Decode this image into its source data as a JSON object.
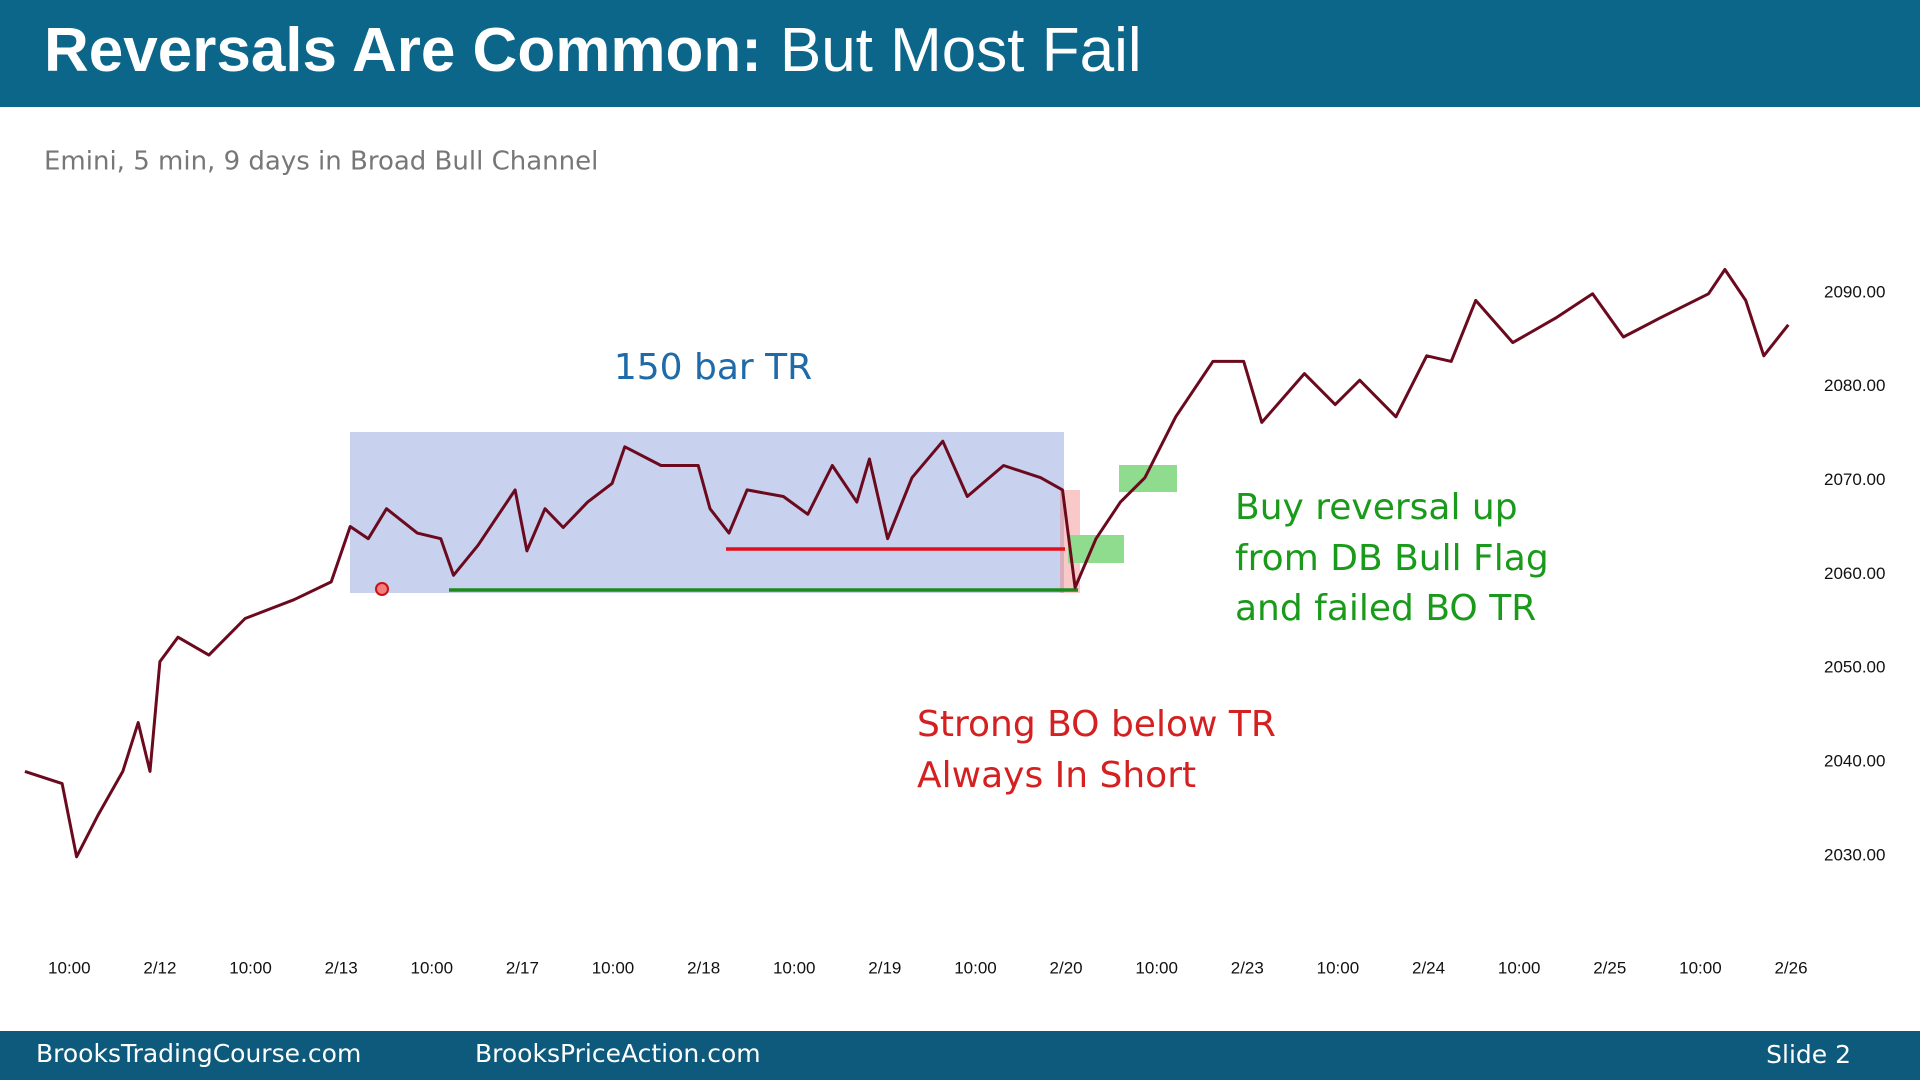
{
  "header": {
    "title": "Reversals Are Common:",
    "title_rest": "But Most Fail"
  },
  "chart_data": {
    "type": "line",
    "subtitle": "Emini, 5 min, 9 days in Broad Bull Channel",
    "annotations": [
      "150 bar TR",
      "Buy reversal up",
      "from DB Bull Flag",
      "and failed BO TR",
      "Strong BO below TR",
      "Always In Short"
    ],
    "color": "#6b0a1e",
    "grid": false,
    "x": [
      -0.49,
      -0.08,
      0.08,
      0.32,
      0.59,
      0.76,
      0.89,
      1.0,
      1.2,
      1.54,
      1.94,
      2.48,
      2.89,
      3.1,
      3.3,
      3.5,
      3.84,
      4.1,
      4.24,
      4.51,
      4.92,
      5.05,
      5.25,
      5.45,
      5.72,
      5.99,
      6.13,
      6.53,
      6.94,
      7.07,
      7.28,
      7.48,
      7.88,
      8.15,
      8.42,
      8.69,
      8.83,
      9.03,
      9.3,
      9.64,
      9.91,
      10.31,
      10.72,
      10.96,
      11.1,
      11.33,
      11.6,
      11.87,
      12.21,
      12.62,
      12.96,
      13.16,
      13.63,
      13.97,
      14.24,
      14.64,
      14.98,
      15.25,
      15.52,
      15.93,
      16.4,
      16.81,
      17.15,
      17.55,
      18.09,
      18.27,
      18.5,
      18.7,
      18.97
    ],
    "values": [
      2039,
      2037.7,
      2029.9,
      2034.4,
      2039,
      2044.2,
      2039,
      2050.7,
      2053.3,
      2051.4,
      2055.3,
      2057.3,
      2059.2,
      2065.1,
      2063.8,
      2067,
      2064.4,
      2063.8,
      2059.9,
      2063.1,
      2069,
      2062.5,
      2067,
      2065,
      2067.7,
      2069.7,
      2073.6,
      2071.6,
      2071.6,
      2067,
      2064.4,
      2069,
      2068.3,
      2066.4,
      2071.6,
      2067.7,
      2072.3,
      2063.8,
      2070.3,
      2074.2,
      2068.3,
      2071.6,
      2070.3,
      2069,
      2058.6,
      2063.8,
      2067.7,
      2070.3,
      2076.8,
      2082.7,
      2082.7,
      2076.2,
      2081.4,
      2078.1,
      2080.7,
      2076.8,
      2083.3,
      2082.7,
      2089.2,
      2084.7,
      2087.3,
      2089.9,
      2085.3,
      2087.3,
      2089.9,
      2092.5,
      2089.2,
      2083.3,
      2086.6
    ],
    "xlim": [
      -0.5,
      19
    ],
    "xticks": [
      {
        "value": 0,
        "label": "10:00"
      },
      {
        "value": 1,
        "label": "2/12"
      },
      {
        "value": 2,
        "label": "10:00"
      },
      {
        "value": 3,
        "label": "2/13"
      },
      {
        "value": 4,
        "label": "10:00"
      },
      {
        "value": 5,
        "label": "2/17"
      },
      {
        "value": 6,
        "label": "10:00"
      },
      {
        "value": 7,
        "label": "2/18"
      },
      {
        "value": 8,
        "label": "10:00"
      },
      {
        "value": 9,
        "label": "2/19"
      },
      {
        "value": 10,
        "label": "10:00"
      },
      {
        "value": 11,
        "label": "2/20"
      },
      {
        "value": 12,
        "label": "10:00"
      },
      {
        "value": 13,
        "label": "2/23"
      },
      {
        "value": 14,
        "label": "10:00"
      },
      {
        "value": 15,
        "label": "2/24"
      },
      {
        "value": 16,
        "label": "10:00"
      },
      {
        "value": 17,
        "label": "2/25"
      },
      {
        "value": 18,
        "label": "10:00"
      },
      {
        "value": 19,
        "label": "2/26"
      }
    ],
    "ylim": [
      2027,
      2095
    ],
    "yticks": [
      {
        "value": 2030,
        "label": "2030.00"
      },
      {
        "value": 2040,
        "label": "2040.00"
      },
      {
        "value": 2050,
        "label": "2050.00"
      },
      {
        "value": 2060,
        "label": "2060.00"
      },
      {
        "value": 2070,
        "label": "2070.00"
      },
      {
        "value": 2080,
        "label": "2080.00"
      },
      {
        "value": 2090,
        "label": "2090.00"
      }
    ]
  },
  "footer": {
    "left": "BrooksTradingCourse.com",
    "center": "BrooksPriceAction.com",
    "slide": "Slide  2"
  }
}
